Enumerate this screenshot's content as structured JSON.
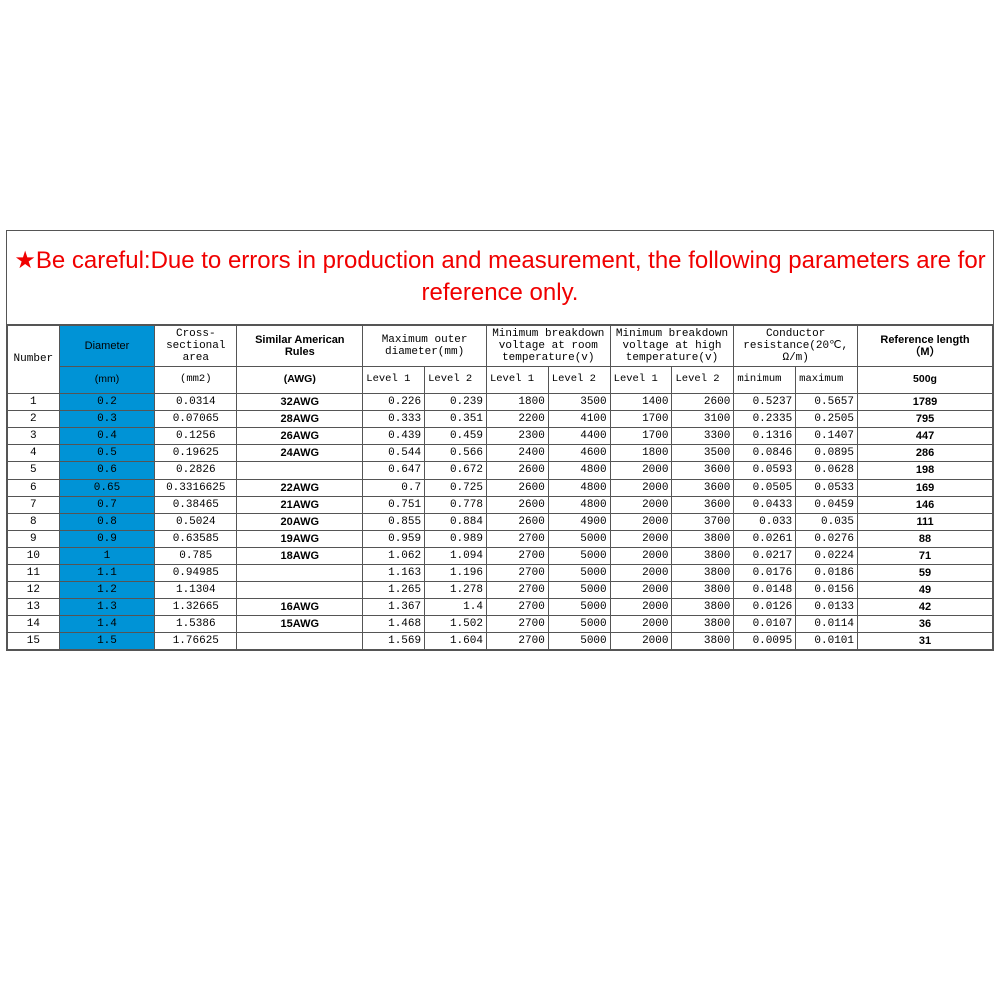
{
  "warning": "★Be careful:Due to errors in production and measurement, the following parameters are for reference only.",
  "headers": {
    "number": "Number",
    "diameter": "Diameter",
    "area": "Cross-sectional area",
    "awg": "Similar American Rules",
    "maxOuter": "Maximum outer diameter(mm)",
    "minBreakRoom": "Minimum breakdown voltage at room temperature(v)",
    "minBreakHigh": "Minimum breakdown voltage at high temperature(v)",
    "resistance": "Conductor resistance(20℃, Ω/m)",
    "reflen_l1": "Reference length",
    "reflen_l2": "（M）",
    "sub": {
      "diameter_unit": "(mm)",
      "area_unit": "(mm2)",
      "awg_unit": "(AWG)",
      "level1": "Level 1",
      "level2": "Level 2",
      "min": "minimum",
      "max": "maximum",
      "ref_weight": "500g"
    }
  },
  "rows": [
    {
      "num": "1",
      "dia": "0.2",
      "area": "0.0314",
      "awg": "32AWG",
      "od1": "0.226",
      "od2": "0.239",
      "br1": "1800",
      "br2": "3500",
      "bh1": "1400",
      "bh2": "2600",
      "rmin": "0.5237",
      "rmax": "0.5657",
      "ref": "1789"
    },
    {
      "num": "2",
      "dia": "0.3",
      "area": "0.07065",
      "awg": "28AWG",
      "od1": "0.333",
      "od2": "0.351",
      "br1": "2200",
      "br2": "4100",
      "bh1": "1700",
      "bh2": "3100",
      "rmin": "0.2335",
      "rmax": "0.2505",
      "ref": "795"
    },
    {
      "num": "3",
      "dia": "0.4",
      "area": "0.1256",
      "awg": "26AWG",
      "od1": "0.439",
      "od2": "0.459",
      "br1": "2300",
      "br2": "4400",
      "bh1": "1700",
      "bh2": "3300",
      "rmin": "0.1316",
      "rmax": "0.1407",
      "ref": "447"
    },
    {
      "num": "4",
      "dia": "0.5",
      "area": "0.19625",
      "awg": "24AWG",
      "od1": "0.544",
      "od2": "0.566",
      "br1": "2400",
      "br2": "4600",
      "bh1": "1800",
      "bh2": "3500",
      "rmin": "0.0846",
      "rmax": "0.0895",
      "ref": "286"
    },
    {
      "num": "5",
      "dia": "0.6",
      "area": "0.2826",
      "awg": "",
      "od1": "0.647",
      "od2": "0.672",
      "br1": "2600",
      "br2": "4800",
      "bh1": "2000",
      "bh2": "3600",
      "rmin": "0.0593",
      "rmax": "0.0628",
      "ref": "198"
    },
    {
      "num": "6",
      "dia": "0.65",
      "area": "0.3316625",
      "awg": "22AWG",
      "od1": "0.7",
      "od2": "0.725",
      "br1": "2600",
      "br2": "4800",
      "bh1": "2000",
      "bh2": "3600",
      "rmin": "0.0505",
      "rmax": "0.0533",
      "ref": "169"
    },
    {
      "num": "7",
      "dia": "0.7",
      "area": "0.38465",
      "awg": "21AWG",
      "od1": "0.751",
      "od2": "0.778",
      "br1": "2600",
      "br2": "4800",
      "bh1": "2000",
      "bh2": "3600",
      "rmin": "0.0433",
      "rmax": "0.0459",
      "ref": "146"
    },
    {
      "num": "8",
      "dia": "0.8",
      "area": "0.5024",
      "awg": "20AWG",
      "od1": "0.855",
      "od2": "0.884",
      "br1": "2600",
      "br2": "4900",
      "bh1": "2000",
      "bh2": "3700",
      "rmin": "0.033",
      "rmax": "0.035",
      "ref": "111"
    },
    {
      "num": "9",
      "dia": "0.9",
      "area": "0.63585",
      "awg": "19AWG",
      "od1": "0.959",
      "od2": "0.989",
      "br1": "2700",
      "br2": "5000",
      "bh1": "2000",
      "bh2": "3800",
      "rmin": "0.0261",
      "rmax": "0.0276",
      "ref": "88"
    },
    {
      "num": "10",
      "dia": "1",
      "area": "0.785",
      "awg": "18AWG",
      "od1": "1.062",
      "od2": "1.094",
      "br1": "2700",
      "br2": "5000",
      "bh1": "2000",
      "bh2": "3800",
      "rmin": "0.0217",
      "rmax": "0.0224",
      "ref": "71"
    },
    {
      "num": "11",
      "dia": "1.1",
      "area": "0.94985",
      "awg": "",
      "od1": "1.163",
      "od2": "1.196",
      "br1": "2700",
      "br2": "5000",
      "bh1": "2000",
      "bh2": "3800",
      "rmin": "0.0176",
      "rmax": "0.0186",
      "ref": "59"
    },
    {
      "num": "12",
      "dia": "1.2",
      "area": "1.1304",
      "awg": "",
      "od1": "1.265",
      "od2": "1.278",
      "br1": "2700",
      "br2": "5000",
      "bh1": "2000",
      "bh2": "3800",
      "rmin": "0.0148",
      "rmax": "0.0156",
      "ref": "49"
    },
    {
      "num": "13",
      "dia": "1.3",
      "area": "1.32665",
      "awg": "16AWG",
      "od1": "1.367",
      "od2": "1.4",
      "br1": "2700",
      "br2": "5000",
      "bh1": "2000",
      "bh2": "3800",
      "rmin": "0.0126",
      "rmax": "0.0133",
      "ref": "42"
    },
    {
      "num": "14",
      "dia": "1.4",
      "area": "1.5386",
      "awg": "15AWG",
      "od1": "1.468",
      "od2": "1.502",
      "br1": "2700",
      "br2": "5000",
      "bh1": "2000",
      "bh2": "3800",
      "rmin": "0.0107",
      "rmax": "0.0114",
      "ref": "36"
    },
    {
      "num": "15",
      "dia": "1.5",
      "area": "1.76625",
      "awg": "",
      "od1": "1.569",
      "od2": "1.604",
      "br1": "2700",
      "br2": "5000",
      "bh1": "2000",
      "bh2": "3800",
      "rmin": "0.0095",
      "rmax": "0.0101",
      "ref": "31"
    }
  ],
  "styling": {
    "warning_color": "#f00000",
    "diameter_bg": "#0093d6",
    "border_color": "#555555",
    "background": "#ffffff",
    "mono_font": "Consolas, Courier New, monospace",
    "sans_font": "Arial, sans-serif"
  }
}
